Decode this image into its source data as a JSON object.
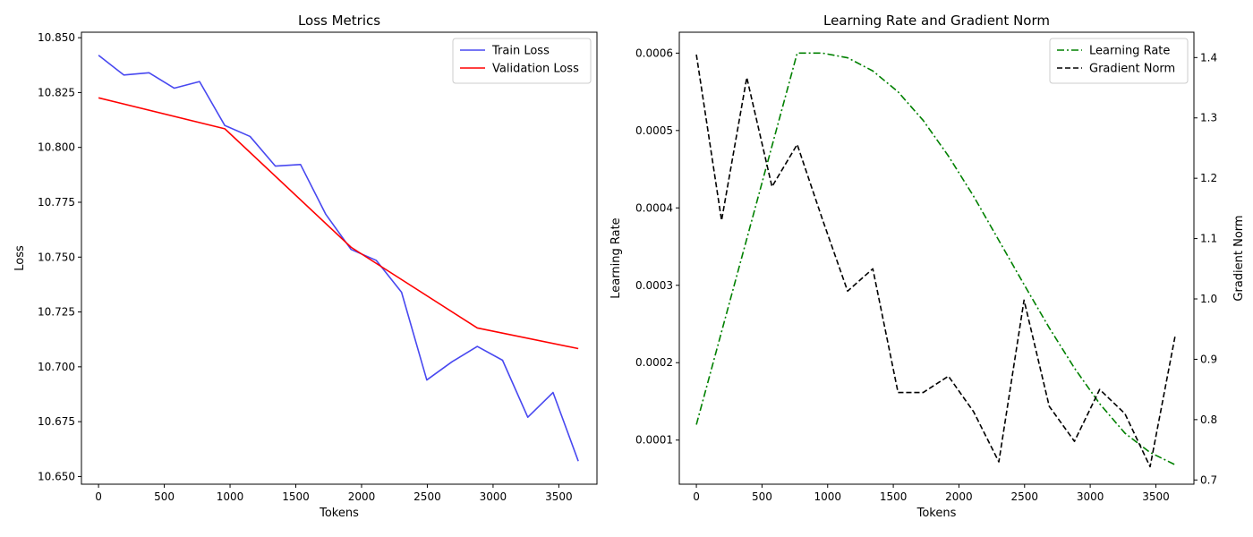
{
  "chart_data": [
    {
      "type": "line",
      "title": "Loss Metrics",
      "xlabel": "Tokens",
      "ylabel": "Loss",
      "xlim": [
        -130,
        3790
      ],
      "ylim": [
        10.6465,
        10.8525
      ],
      "xticks": [
        0,
        500,
        1000,
        1500,
        2000,
        2500,
        3000,
        3500
      ],
      "xtick_labels": [
        "0",
        "500",
        "1000",
        "1500",
        "2000",
        "2500",
        "3000",
        "3500"
      ],
      "yticks": [
        10.65,
        10.675,
        10.7,
        10.725,
        10.75,
        10.775,
        10.8,
        10.825,
        10.85
      ],
      "ytick_labels": [
        "10.650",
        "10.675",
        "10.700",
        "10.725",
        "10.750",
        "10.775",
        "10.800",
        "10.825",
        "10.850"
      ],
      "legend_position": "top-right",
      "grid": false,
      "series": [
        {
          "name": "Train Loss",
          "color": "#4848f0",
          "style": "solid",
          "x": [
            0,
            192,
            384,
            576,
            768,
            960,
            1152,
            1344,
            1536,
            1728,
            1920,
            2112,
            2304,
            2496,
            2688,
            2880,
            3072,
            3264,
            3456,
            3648
          ],
          "y": [
            10.842,
            10.833,
            10.834,
            10.827,
            10.83,
            10.81,
            10.805,
            10.7915,
            10.7922,
            10.7695,
            10.7535,
            10.7485,
            10.734,
            10.694,
            10.7023,
            10.7093,
            10.703,
            10.677,
            10.6883,
            10.657
          ]
        },
        {
          "name": "Validation Loss",
          "color": "#ff0000",
          "style": "solid",
          "x": [
            0,
            960,
            1920,
            2880,
            3648
          ],
          "y": [
            10.8226,
            10.8085,
            10.7545,
            10.7177,
            10.7083
          ]
        }
      ]
    },
    {
      "type": "line",
      "title": "Learning Rate and Gradient Norm",
      "xlabel": "Tokens",
      "ylabel": "Learning Rate",
      "ylabel_right": "Gradient Norm",
      "ylabel_color": "#008000",
      "xlim": [
        -130,
        3790
      ],
      "ylim": [
        4.3e-05,
        0.000627
      ],
      "ylim_right": [
        0.693,
        1.442
      ],
      "xticks": [
        0,
        500,
        1000,
        1500,
        2000,
        2500,
        3000,
        3500
      ],
      "xtick_labels": [
        "0",
        "500",
        "1000",
        "1500",
        "2000",
        "2500",
        "3000",
        "3500"
      ],
      "yticks": [
        0.0001,
        0.0002,
        0.0003,
        0.0004,
        0.0005,
        0.0006
      ],
      "ytick_labels": [
        "0.0001",
        "0.0002",
        "0.0003",
        "0.0004",
        "0.0005",
        "0.0006"
      ],
      "yticks_right": [
        0.7,
        0.8,
        0.9,
        1.0,
        1.1,
        1.2,
        1.3,
        1.4
      ],
      "ytick_labels_right": [
        "0.7",
        "0.8",
        "0.9",
        "1.0",
        "1.1",
        "1.2",
        "1.3",
        "1.4"
      ],
      "legend_position": "top-right",
      "grid": false,
      "series": [
        {
          "name": "Learning Rate",
          "color": "#008000",
          "style": "dashdot",
          "axis": "left",
          "x": [
            0,
            192,
            384,
            576,
            768,
            960,
            1152,
            1344,
            1536,
            1728,
            1920,
            2112,
            2304,
            2496,
            2688,
            2880,
            3072,
            3264,
            3456,
            3648
          ],
          "y": [
            0.00012,
            0.00024,
            0.00036,
            0.00048,
            0.0006,
            0.0006,
            0.000594,
            0.000577,
            0.00055,
            0.000513,
            0.000467,
            0.000415,
            0.000358,
            0.000301,
            0.000245,
            0.000193,
            0.000147,
            0.000109,
            8.4e-05,
            6.8e-05
          ]
        },
        {
          "name": "Gradient Norm",
          "color": "#000000",
          "style": "dashed",
          "axis": "right",
          "x": [
            0,
            192,
            384,
            576,
            768,
            960,
            1152,
            1344,
            1536,
            1728,
            1920,
            2112,
            2304,
            2496,
            2688,
            2880,
            3072,
            3264,
            3456,
            3648
          ],
          "y": [
            1.405,
            1.13,
            1.367,
            1.186,
            1.256,
            1.132,
            1.013,
            1.05,
            0.845,
            0.845,
            0.872,
            0.813,
            0.73,
            0.998,
            0.822,
            0.764,
            0.85,
            0.81,
            0.722,
            0.94
          ]
        }
      ]
    }
  ]
}
